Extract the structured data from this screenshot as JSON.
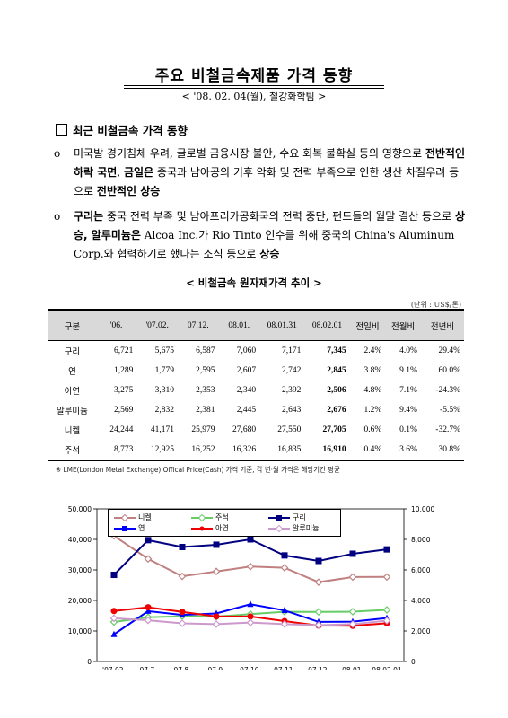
{
  "header": {
    "title": "주요 비철금속제품 가격 동향",
    "subtitle": "< '08. 02. 04(월),  철강화학팀 >"
  },
  "section": {
    "title": "최근 비철금속 가격 동향"
  },
  "bullets": [
    {
      "mark": "o",
      "parts": [
        {
          "t": "미국발 경기침체 우려, 글로벌 금융시장 불안, 수요 회복 불확실 등의 영향으로 ",
          "b": false
        },
        {
          "t": "전반적인 하락 국면",
          "b": true
        },
        {
          "t": ", ",
          "b": false
        },
        {
          "t": "금일은",
          "b": true
        },
        {
          "t": " 중국과 남아공의 기후 악화 및 전력 부족으로 인한 생산 차질우려 등으로 ",
          "b": false
        },
        {
          "t": "전반적인 상승",
          "b": true
        }
      ]
    },
    {
      "mark": "o",
      "parts": [
        {
          "t": "구리는",
          "b": true
        },
        {
          "t": " 중국 전력 부족 및 남아프리카공화국의 전력 중단, 펀드들의 월말 결산 등으로 ",
          "b": false
        },
        {
          "t": "상승, 알루미늄은",
          "b": true
        },
        {
          "t": " Alcoa Inc.가 Rio Tinto 인수를 위해 중국의 China's Aluminum Corp.와 협력하기로 했다는 소식 등으로 ",
          "b": false
        },
        {
          "t": "상승",
          "b": true
        }
      ]
    }
  ],
  "table": {
    "title": "< 비철금속 원자재가격 추이 >",
    "unit": "(단위 : US$/톤)",
    "headers": [
      "구분",
      "'06.",
      "'07.02.",
      "07.12.",
      "08.01.",
      "08.01.31",
      "08.02.01",
      "전일비",
      "전월비",
      "전년비"
    ],
    "rows": [
      [
        "구리",
        "6,721",
        "5,675",
        "6,587",
        "7,060",
        "7,171",
        "7,345",
        "2.4%",
        "4.0%",
        "29.4%"
      ],
      [
        "연",
        "1,289",
        "1,779",
        "2,595",
        "2,607",
        "2,742",
        "2,845",
        "3.8%",
        "9.1%",
        "60.0%"
      ],
      [
        "아연",
        "3,275",
        "3,310",
        "2,353",
        "2,340",
        "2,392",
        "2,506",
        "4.8%",
        "7.1%",
        "-24.3%"
      ],
      [
        "알루미늄",
        "2,569",
        "2,832",
        "2,381",
        "2,445",
        "2,643",
        "2,676",
        "1.2%",
        "9.4%",
        "-5.5%"
      ],
      [
        "니켈",
        "24,244",
        "41,171",
        "25,979",
        "27,680",
        "27,550",
        "27,705",
        "0.6%",
        "0.1%",
        "-32.7%"
      ],
      [
        "주석",
        "8,773",
        "12,925",
        "16,252",
        "16,326",
        "16,835",
        "16,910",
        "0.4%",
        "3.6%",
        "30.8%"
      ]
    ],
    "note": "※ LME(London Metal Exchange) Offical Price(Cash) 가격 기준, 각 년·월 가격은 해당기간 평균"
  },
  "chart_data": {
    "type": "line",
    "categories": [
      "'07.02.",
      "07.7.",
      "07.8.",
      "07.9.",
      "07.10.",
      "07.11.",
      "07.12.",
      "08.01.",
      "08.02.01"
    ],
    "ylim_left": [
      0,
      50000
    ],
    "yticks_left": [
      "0",
      "10,000",
      "20,000",
      "30,000",
      "40,000",
      "50,000"
    ],
    "ylim_right": [
      0,
      10000
    ],
    "yticks_right": [
      "0",
      "2,000",
      "4,000",
      "6,000",
      "8,000",
      "10,000"
    ],
    "series": [
      {
        "name": "니켈",
        "axis": "left",
        "color": "#c08080",
        "marker": "diamond-open",
        "values": [
          41171,
          33600,
          27900,
          29500,
          31100,
          30700,
          25979,
          27680,
          27705
        ]
      },
      {
        "name": "주석",
        "axis": "left",
        "color": "#66cc66",
        "marker": "diamond-open",
        "values": [
          12925,
          14500,
          14800,
          14700,
          15500,
          16300,
          16252,
          16326,
          16910
        ]
      },
      {
        "name": "구리",
        "axis": "right",
        "color": "#000080",
        "marker": "square",
        "values": [
          5675,
          7950,
          7500,
          7650,
          8000,
          6950,
          6587,
          7060,
          7345
        ]
      },
      {
        "name": "연",
        "axis": "right",
        "color": "#0000ff",
        "marker": "triangle",
        "values": [
          1779,
          3300,
          3050,
          3150,
          3750,
          3350,
          2595,
          2607,
          2845
        ]
      },
      {
        "name": "아연",
        "axis": "right",
        "color": "#ee0000",
        "marker": "circle",
        "values": [
          3310,
          3550,
          3250,
          2950,
          2950,
          2650,
          2353,
          2340,
          2506
        ]
      },
      {
        "name": "알루미늄",
        "axis": "right",
        "color": "#cc99cc",
        "marker": "diamond-open",
        "values": [
          2832,
          2700,
          2500,
          2450,
          2550,
          2450,
          2381,
          2445,
          2676
        ]
      }
    ]
  }
}
